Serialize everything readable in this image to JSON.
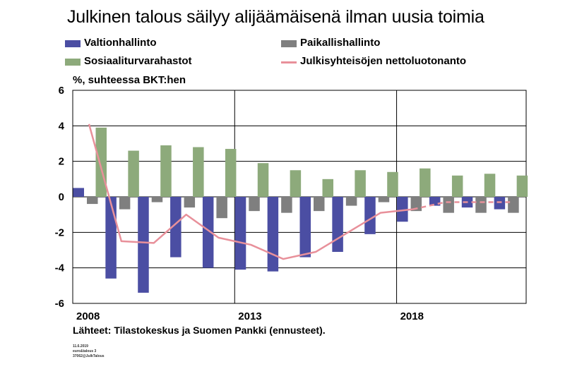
{
  "chart_data": {
    "type": "bar",
    "title": "Julkinen talous säilyy alijäämäisenä ilman uusia toimia",
    "ylabel": "%, suhteessa BKT:hen",
    "ylim": [
      -6,
      6
    ],
    "yticks": [
      6,
      4,
      2,
      0,
      -2,
      -4,
      -6
    ],
    "x": [
      2008,
      2009,
      2010,
      2011,
      2012,
      2013,
      2014,
      2015,
      2016,
      2017,
      2018,
      2019,
      2020,
      2021
    ],
    "xtick_labels": [
      "2008",
      "2013",
      "2018"
    ],
    "legend_position": "top",
    "series": [
      {
        "name": "Valtionhallinto",
        "kind": "bar",
        "color": "#4b4ea3",
        "values": [
          0.5,
          -4.6,
          -5.4,
          -3.4,
          -4.0,
          -4.1,
          -4.2,
          -3.4,
          -3.1,
          -2.1,
          -1.4,
          -0.5,
          -0.6,
          -0.7
        ]
      },
      {
        "name": "Paikallishallinto",
        "kind": "bar",
        "color": "#7f7f7f",
        "values": [
          -0.4,
          -0.7,
          -0.3,
          -0.6,
          -1.2,
          -0.8,
          -0.9,
          -0.8,
          -0.5,
          -0.3,
          -0.8,
          -0.9,
          -0.9,
          -0.9
        ]
      },
      {
        "name": "Sosiaaliturvarahastot",
        "kind": "bar",
        "color": "#8daa7b",
        "values": [
          3.9,
          2.6,
          2.9,
          2.8,
          2.7,
          1.9,
          1.5,
          1.0,
          1.5,
          1.4,
          1.6,
          1.2,
          1.3,
          1.2
        ]
      },
      {
        "name": "Julkisyhteisöjen nettoluotonanto",
        "kind": "line",
        "color": "#e8909a",
        "values": [
          4.1,
          -2.5,
          -2.6,
          -1.0,
          -2.3,
          -2.7,
          -3.5,
          -3.1,
          -2.0,
          -0.9,
          -0.7,
          -0.3,
          -0.3,
          -0.3
        ],
        "forecast_from_index": 10
      }
    ]
  },
  "footer": {
    "source": "Lähteet: Tilastokeskus ja Suomen Pankki (ennusteet).",
    "date": "11.6.2019",
    "code": "euro&talous 3",
    "id": "37062@JulkTalous"
  },
  "colors": {
    "plot_background": "#ffffff",
    "grid": "#000000"
  }
}
